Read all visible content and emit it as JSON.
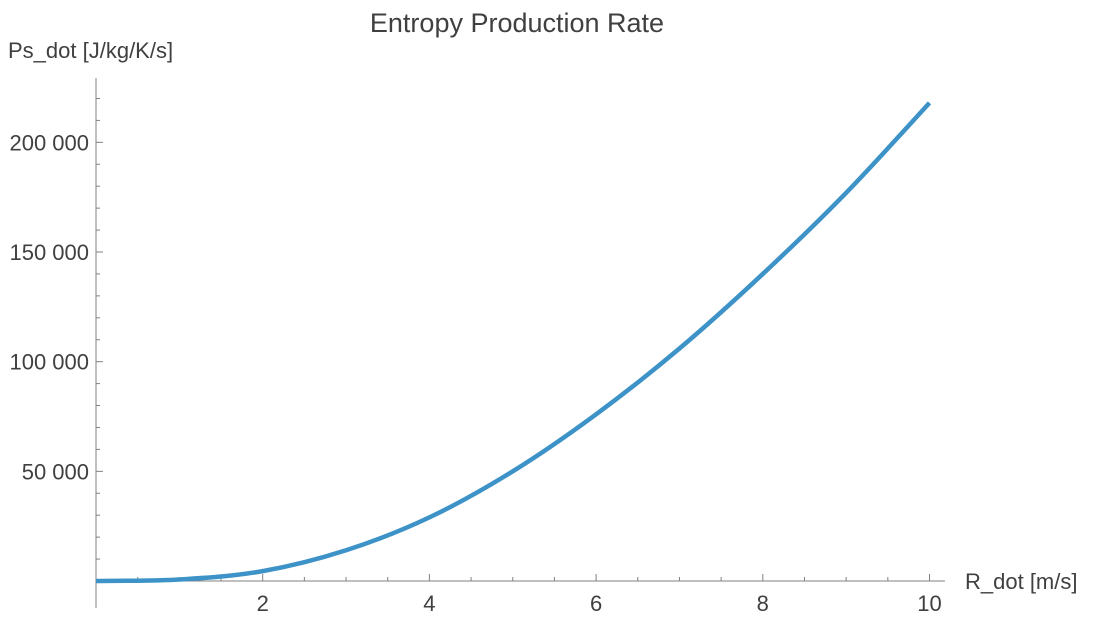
{
  "chart_data": {
    "type": "line",
    "title": "Entropy Production Rate",
    "xlabel": "R_dot [m/s]",
    "ylabel": "Ps_dot [J/kg/K/s]",
    "xlim": [
      0,
      10
    ],
    "ylim": [
      0,
      225000
    ],
    "xticks": [
      2,
      4,
      6,
      8,
      10
    ],
    "xtick_labels": [
      "2",
      "4",
      "6",
      "8",
      "10"
    ],
    "yticks": [
      50000,
      100000,
      150000,
      200000
    ],
    "ytick_labels": [
      "50 000",
      "100 000",
      "150 000",
      "200 000"
    ],
    "grid": false,
    "series_color": "#3d93c8",
    "series": [
      {
        "x": [
          0,
          1,
          2,
          3,
          4,
          5,
          6,
          7,
          8,
          9,
          10
        ],
        "values": [
          0,
          700,
          4500,
          14000,
          29000,
          50000,
          76000,
          106000,
          140000,
          177000,
          218000
        ]
      }
    ]
  }
}
